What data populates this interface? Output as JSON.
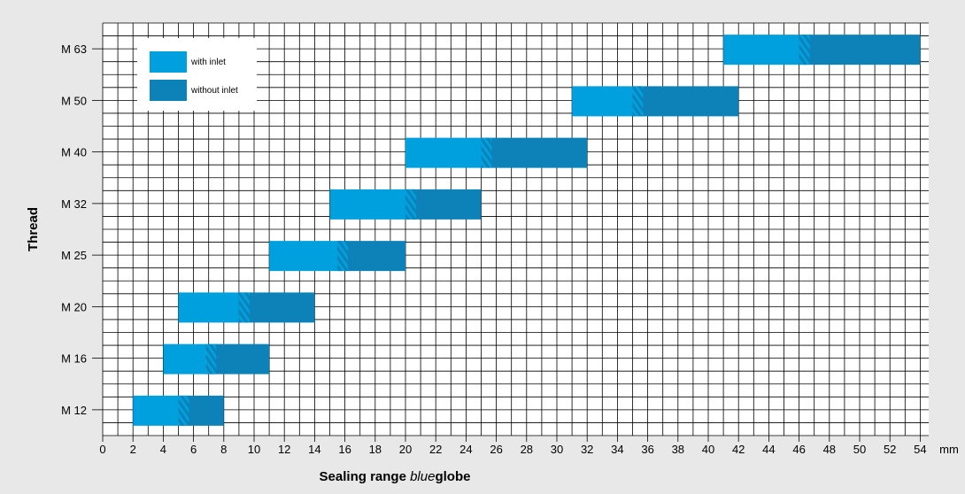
{
  "colors": {
    "background": "#e8e8e8",
    "plot_background": "#ffffff",
    "grid": "#000000",
    "with_inlet": "#00a0df",
    "without_inlet": "#0c82b8"
  },
  "chart_data": {
    "type": "bar",
    "orientation": "horizontal-range",
    "title": "",
    "xlabel_prefix": "Sealing range ",
    "xlabel_italic": "blue",
    "xlabel_bold": "globe",
    "ylabel": "Thread",
    "x_unit": "mm",
    "xlim": [
      0,
      55
    ],
    "x_ticks": [
      0,
      2,
      4,
      6,
      8,
      10,
      12,
      14,
      16,
      18,
      20,
      22,
      24,
      26,
      28,
      30,
      32,
      34,
      36,
      38,
      40,
      42,
      44,
      46,
      48,
      50,
      52,
      54
    ],
    "x_tick_labels": [
      "0",
      "2",
      "4",
      "6",
      "8",
      "10",
      "12",
      "14",
      "16",
      "18",
      "20",
      "22",
      "24",
      "26",
      "28",
      "30",
      "32",
      "34",
      "36",
      "38",
      "40",
      "42",
      "44",
      "46",
      "48",
      "50",
      "52",
      "54"
    ],
    "grid": true,
    "legend_position": "top-left",
    "legend": [
      {
        "name": "with inlet",
        "color_key": "with_inlet"
      },
      {
        "name": "without inlet",
        "color_key": "without_inlet"
      }
    ],
    "categories": [
      "M 12",
      "M 16",
      "M 20",
      "M 25",
      "M 32",
      "M 40",
      "M 50",
      "M 63"
    ],
    "ranges": [
      {
        "thread": "M 12",
        "with_inlet": [
          2,
          5.7
        ],
        "without_inlet": [
          5.0,
          8
        ]
      },
      {
        "thread": "M 16",
        "with_inlet": [
          4,
          7.5
        ],
        "without_inlet": [
          6.8,
          11
        ]
      },
      {
        "thread": "M 20",
        "with_inlet": [
          5,
          9.7
        ],
        "without_inlet": [
          9.0,
          14
        ]
      },
      {
        "thread": "M 25",
        "with_inlet": [
          11,
          16.2
        ],
        "without_inlet": [
          15.5,
          20
        ]
      },
      {
        "thread": "M 32",
        "with_inlet": [
          15,
          20.7
        ],
        "without_inlet": [
          20.0,
          25
        ]
      },
      {
        "thread": "M 40",
        "with_inlet": [
          20,
          25.7
        ],
        "without_inlet": [
          25.0,
          32
        ]
      },
      {
        "thread": "M 50",
        "with_inlet": [
          31,
          35.7
        ],
        "without_inlet": [
          35.0,
          42
        ]
      },
      {
        "thread": "M 63",
        "with_inlet": [
          41,
          46.7
        ],
        "without_inlet": [
          46.0,
          54
        ]
      }
    ]
  }
}
